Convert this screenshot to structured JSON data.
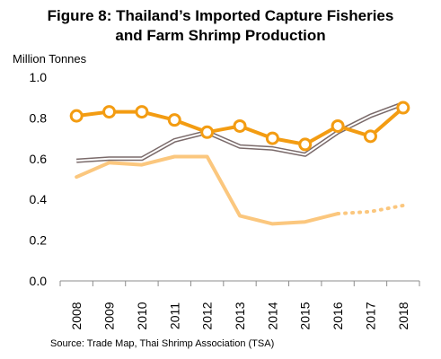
{
  "figure": {
    "title_line1": "Figure 8: Thailand’s Imported Capture Fisheries",
    "title_line2": "and Farm Shrimp Production",
    "source": "Source: Trade Map, Thai Shrimp Association (TSA)"
  },
  "chart_data": {
    "type": "line",
    "title": "Figure 8: Thailand’s Imported Capture Fisheries and Farm Shrimp Production",
    "ylabel": "Million Tonnes",
    "xlabel": "",
    "ylim": [
      0,
      1.0
    ],
    "yticks": [
      "0.0",
      "0.2",
      "0.4",
      "0.6",
      "0.8",
      "1.0"
    ],
    "categories": [
      "2008",
      "2009",
      "2010",
      "2011",
      "2012",
      "2013",
      "2014",
      "2015",
      "2016",
      "2017",
      "2018"
    ],
    "legend": "none",
    "grid": false,
    "series": [
      {
        "color": "#f39c12",
        "style": "solid-thick-markers",
        "values": [
          0.81,
          0.83,
          0.83,
          0.79,
          0.73,
          0.76,
          0.7,
          0.67,
          0.76,
          0.71,
          0.85
        ]
      },
      {
        "color": "#7a6a6a",
        "style": "double-line",
        "values": [
          0.59,
          0.6,
          0.6,
          0.69,
          0.73,
          0.66,
          0.65,
          0.62,
          0.73,
          0.81,
          0.87
        ]
      },
      {
        "color": "#fbc77e",
        "style": "solid-then-dotted",
        "values": [
          0.51,
          0.58,
          0.57,
          0.61,
          0.61,
          0.32,
          0.28,
          0.29,
          0.33,
          0.34,
          0.37
        ],
        "solid_through": "2016"
      }
    ]
  }
}
